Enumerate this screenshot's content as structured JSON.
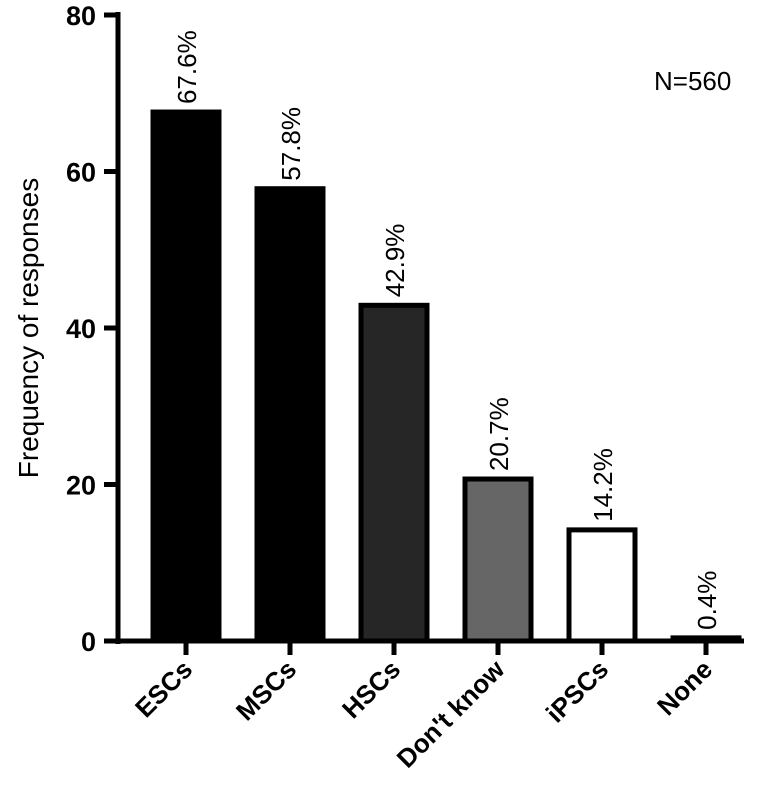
{
  "chart_data": {
    "type": "bar",
    "ylabel": "Frequency of responses",
    "xlabel": "",
    "ylim": [
      0,
      80
    ],
    "yticks": [
      0,
      20,
      40,
      60,
      80
    ],
    "categories": [
      "ESCs",
      "MSCs",
      "HSCs",
      "Don't know",
      "iPSCs",
      "None"
    ],
    "values": [
      67.6,
      57.8,
      42.9,
      20.7,
      14.2,
      0.4
    ],
    "data_labels": [
      "67.6%",
      "57.8%",
      "42.9%",
      "20.7%",
      "14.2%",
      "0.4%"
    ],
    "bar_colors": [
      "#000000",
      "#000000",
      "#262626",
      "#666666",
      "#ffffff",
      "#ffffff"
    ],
    "annotation": "N=560",
    "grid": false
  }
}
